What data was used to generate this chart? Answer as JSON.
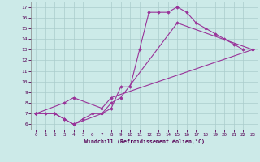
{
  "xlabel": "Windchill (Refroidissement éolien,°C)",
  "xlim": [
    -0.5,
    23.5
  ],
  "ylim": [
    5.5,
    17.5
  ],
  "xticks": [
    0,
    1,
    2,
    3,
    4,
    5,
    6,
    7,
    8,
    9,
    10,
    11,
    12,
    13,
    14,
    15,
    16,
    17,
    18,
    19,
    20,
    21,
    22,
    23
  ],
  "yticks": [
    6,
    7,
    8,
    9,
    10,
    11,
    12,
    13,
    14,
    15,
    16,
    17
  ],
  "background_color": "#cceae8",
  "grid_color": "#aacccc",
  "line_color": "#993399",
  "series": [
    {
      "x": [
        0,
        1,
        2,
        3,
        4,
        5,
        6,
        7,
        8,
        9,
        10,
        11,
        12,
        13,
        14,
        15,
        16,
        17,
        18,
        19,
        20,
        21,
        22
      ],
      "y": [
        7.0,
        7.0,
        7.0,
        6.5,
        6.0,
        6.5,
        7.0,
        7.0,
        7.5,
        9.5,
        9.5,
        13.0,
        16.5,
        16.5,
        16.5,
        17.0,
        16.5,
        15.5,
        15.0,
        14.5,
        14.0,
        13.5,
        13.0
      ]
    },
    {
      "x": [
        0,
        2,
        3,
        4,
        7,
        8,
        9,
        15,
        23
      ],
      "y": [
        7.0,
        7.0,
        6.5,
        6.0,
        7.0,
        8.0,
        8.5,
        15.5,
        13.0
      ]
    },
    {
      "x": [
        0,
        3,
        4,
        7,
        8,
        23
      ],
      "y": [
        7.0,
        8.0,
        8.5,
        7.5,
        8.5,
        13.0
      ]
    }
  ]
}
